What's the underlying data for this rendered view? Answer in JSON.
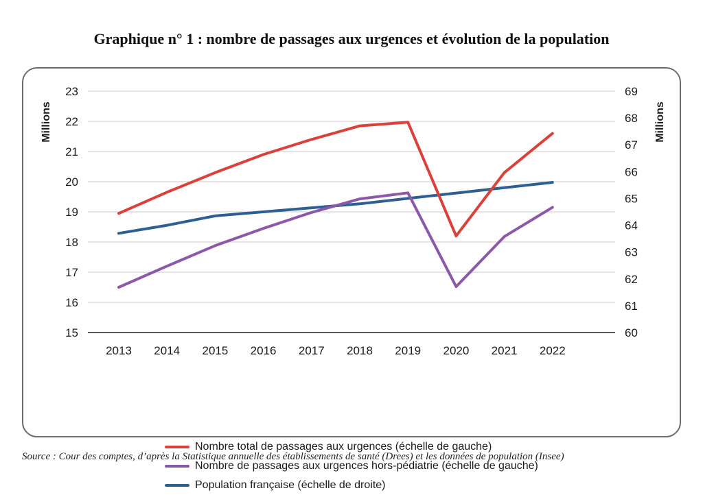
{
  "page": {
    "title": "Graphique n° 1 : nombre de passages aux urgences et évolution de la population",
    "source": "Source : Cour des comptes, d’après la Statistique annuelle des établissements de santé (Drees) et les données de population (Insee)"
  },
  "chart_data": {
    "type": "line",
    "categories": [
      "2013",
      "2014",
      "2015",
      "2016",
      "2017",
      "2018",
      "2019",
      "2020",
      "2021",
      "2022"
    ],
    "y_left": {
      "label": "Millions",
      "lim": [
        15,
        23
      ],
      "ticks": [
        15,
        16,
        17,
        18,
        19,
        20,
        21,
        22,
        23
      ]
    },
    "y_right": {
      "label": "Millions",
      "lim": [
        60,
        69
      ],
      "ticks": [
        60,
        61,
        62,
        63,
        64,
        65,
        66,
        67,
        68,
        69
      ]
    },
    "grid": true,
    "legend_position": "bottom",
    "series": [
      {
        "name": "Nombre total de passages aux urgences (échelle de gauche)",
        "axis": "left",
        "color": "#d9413a",
        "values": [
          18.95,
          19.65,
          20.3,
          20.9,
          21.4,
          21.85,
          21.97,
          18.2,
          20.3,
          21.6
        ]
      },
      {
        "name": "Nombre de passages aux urgences hors-pédiatrie (échelle de gauche)",
        "axis": "left",
        "color": "#8c59a8",
        "values": [
          16.5,
          17.2,
          17.88,
          18.45,
          18.98,
          19.43,
          19.63,
          16.52,
          18.18,
          19.15
        ]
      },
      {
        "name": "Population française (échelle de droite)",
        "axis": "right",
        "color": "#2e5f91",
        "values": [
          63.7,
          64.0,
          64.35,
          64.5,
          64.65,
          64.8,
          65.0,
          65.2,
          65.4,
          65.6
        ]
      }
    ]
  }
}
